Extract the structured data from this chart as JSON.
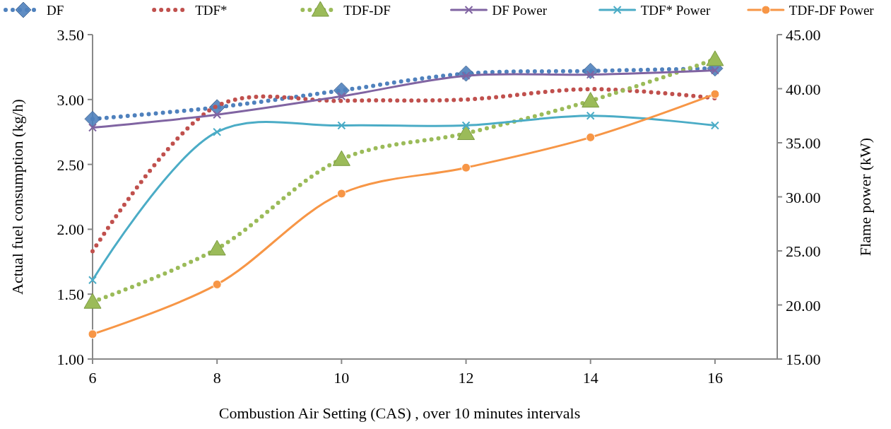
{
  "chart_data": {
    "type": "line",
    "xlabel": "Combustion Air Setting (CAS) , over 10 minutes intervals",
    "ylabel": "Actual fuel consumption (kg/h)",
    "y2label": "Flame power (kW)",
    "x": [
      6,
      8,
      10,
      12,
      14,
      16
    ],
    "xlim": [
      6,
      17
    ],
    "xticks": [
      6,
      8,
      10,
      12,
      14,
      16
    ],
    "ylim": [
      1,
      3.5
    ],
    "yticks": [
      {
        "value": 1,
        "label": "1.00"
      },
      {
        "value": 1.5,
        "label": "1.50"
      },
      {
        "value": 2,
        "label": "2.00"
      },
      {
        "value": 2.5,
        "label": "2.50"
      },
      {
        "value": 3,
        "label": "3.00"
      },
      {
        "value": 3.5,
        "label": "3.50"
      }
    ],
    "y2lim": [
      15,
      45
    ],
    "y2ticks": [
      {
        "value": 15,
        "label": "15.00"
      },
      {
        "value": 20,
        "label": "20.00"
      },
      {
        "value": 25,
        "label": "25.00"
      },
      {
        "value": 30,
        "label": "30.00"
      },
      {
        "value": 35,
        "label": "35.00"
      },
      {
        "value": 40,
        "label": "40.00"
      },
      {
        "value": 45,
        "label": "45.00"
      }
    ],
    "legend": "top",
    "grid": false,
    "series": [
      {
        "name": "DF",
        "color": "#4f81bd",
        "marker": "diamond",
        "line_style": "dotted",
        "values": [
          2.85,
          2.94,
          3.07,
          3.2,
          3.22,
          3.24
        ]
      },
      {
        "name": "TDF*",
        "color": "#c0504d",
        "marker": "none",
        "line_style": "dotted",
        "values": [
          1.83,
          2.95,
          2.99,
          3.0,
          3.08,
          3.01
        ]
      },
      {
        "name": "TDF-DF",
        "color": "#9bbb59",
        "marker": "triangle",
        "line_style": "dotted",
        "values": [
          1.44,
          1.85,
          2.54,
          2.74,
          2.99,
          3.31
        ]
      },
      {
        "name": "DF Power",
        "color": "#8064a2",
        "marker": "cross",
        "line_style": "solid",
        "axis": "y2",
        "values": [
          36.4,
          37.6,
          39.3,
          41.2,
          41.3,
          41.7
        ]
      },
      {
        "name": "TDF* Power",
        "color": "#4bacc6",
        "marker": "cross",
        "line_style": "solid",
        "axis": "y2",
        "values": [
          22.3,
          36.0,
          36.6,
          36.6,
          37.5,
          36.6
        ]
      },
      {
        "name": "TDF-DF Power",
        "color": "#f79646",
        "marker": "circle",
        "line_style": "solid",
        "axis": "y2",
        "values": [
          17.3,
          21.9,
          30.3,
          32.7,
          35.5,
          39.5
        ]
      }
    ]
  }
}
